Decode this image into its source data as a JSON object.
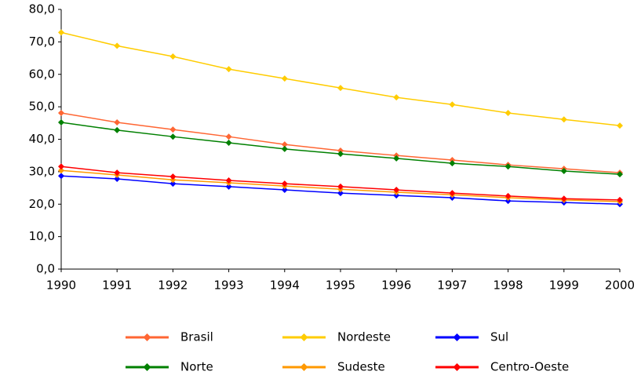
{
  "chart_data": {
    "type": "line",
    "x": [
      1990,
      1991,
      1992,
      1993,
      1994,
      1995,
      1996,
      1997,
      1998,
      1999,
      2000
    ],
    "xlim": [
      1990,
      2000
    ],
    "xticks": [
      1990,
      1991,
      1992,
      1993,
      1994,
      1995,
      1996,
      1997,
      1998,
      1999,
      2000
    ],
    "ylim": [
      0,
      80
    ],
    "yticks": [
      {
        "value": 0,
        "label": "0,0"
      },
      {
        "value": 10,
        "label": "10,0"
      },
      {
        "value": 20,
        "label": "20,0"
      },
      {
        "value": 30,
        "label": "30,0"
      },
      {
        "value": 40,
        "label": "40,0"
      },
      {
        "value": 50,
        "label": "50,0"
      },
      {
        "value": 60,
        "label": "60,0"
      },
      {
        "value": 70,
        "label": "70,0"
      },
      {
        "value": 80,
        "label": "80,0"
      }
    ],
    "grid": false,
    "legend": "bottom",
    "series": [
      {
        "name": "Brasil",
        "color": "#ff6633",
        "values": [
          48.1,
          45.2,
          43.0,
          40.8,
          38.4,
          36.5,
          35.0,
          33.6,
          32.1,
          30.9,
          29.7
        ]
      },
      {
        "name": "Nordeste",
        "color": "#ffcc00",
        "values": [
          72.9,
          68.8,
          65.5,
          61.6,
          58.7,
          55.8,
          52.9,
          50.7,
          48.1,
          46.1,
          44.2
        ]
      },
      {
        "name": "Sul",
        "color": "#0000ff",
        "values": [
          28.7,
          27.8,
          26.3,
          25.4,
          24.4,
          23.4,
          22.7,
          22.0,
          21.0,
          20.5,
          20.0
        ]
      },
      {
        "name": "Norte",
        "color": "#008000",
        "values": [
          45.2,
          42.8,
          40.8,
          38.9,
          37.0,
          35.5,
          34.1,
          32.6,
          31.6,
          30.2,
          29.2
        ]
      },
      {
        "name": "Sudeste",
        "color": "#ff9900",
        "values": [
          30.4,
          29.0,
          27.5,
          26.6,
          25.6,
          24.6,
          23.7,
          22.9,
          22.0,
          21.3,
          20.8
        ]
      },
      {
        "name": "Centro-Oeste",
        "color": "#ff0000",
        "values": [
          31.6,
          29.7,
          28.5,
          27.3,
          26.3,
          25.4,
          24.4,
          23.4,
          22.5,
          21.7,
          21.3
        ]
      }
    ]
  }
}
